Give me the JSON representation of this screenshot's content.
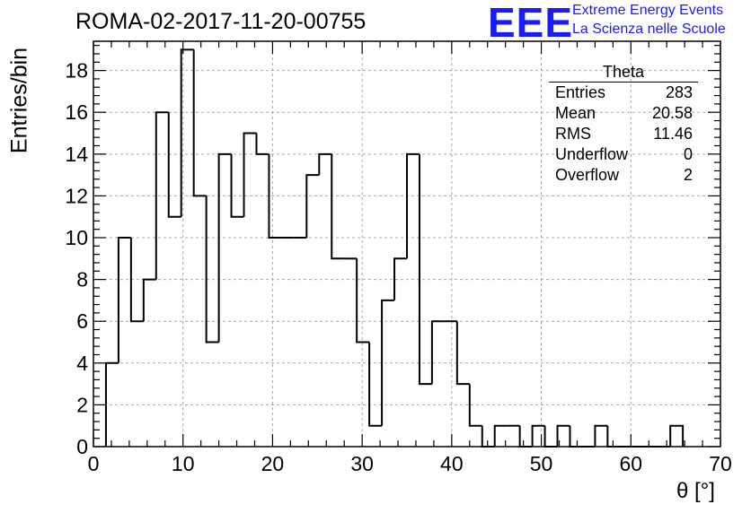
{
  "chart_data": {
    "type": "bar",
    "title": "ROMA-02-2017-11-20-00755",
    "xlabel": "θ [°]",
    "ylabel": "Entries/bin",
    "xlim": [
      0,
      70
    ],
    "ylim": [
      0,
      19.4
    ],
    "xticks": [
      "0",
      "10",
      "20",
      "30",
      "40",
      "50",
      "60",
      "70"
    ],
    "yticks": [
      "0",
      "2",
      "4",
      "6",
      "8",
      "10",
      "12",
      "14",
      "16",
      "18"
    ],
    "grid": true,
    "bin_edges": [
      1.4,
      2.8,
      4.2,
      5.6,
      7.0,
      8.4,
      9.8,
      11.2,
      12.6,
      14.0,
      15.4,
      16.8,
      18.2,
      19.6,
      21.0,
      22.4,
      23.8,
      25.2,
      26.6,
      28.0,
      29.4,
      30.8,
      32.2,
      33.6,
      35.0,
      36.4,
      37.8,
      39.2,
      40.6,
      42.0,
      43.4,
      44.8,
      46.2,
      47.6,
      49.0,
      50.4,
      51.8,
      53.2,
      54.6,
      56.0,
      57.4,
      58.8,
      60.2,
      61.6,
      63.0,
      64.4,
      65.8
    ],
    "values": [
      4,
      10,
      6,
      8,
      16,
      11,
      19,
      12,
      5,
      14,
      11,
      15,
      14,
      10,
      10,
      10,
      13,
      14,
      9,
      9,
      5,
      1,
      7,
      9,
      14,
      3,
      6,
      6,
      3,
      1,
      0,
      1,
      1,
      0,
      1,
      0,
      1,
      0,
      0,
      1,
      0,
      0,
      0,
      0,
      0,
      1
    ],
    "stats": {
      "title": "Theta",
      "entries": [
        {
          "label": "Entries",
          "value": "283"
        },
        {
          "label": "Mean",
          "value": "20.58"
        },
        {
          "label": "RMS",
          "value": "11.46"
        },
        {
          "label": "Underflow",
          "value": "0"
        },
        {
          "label": "Overflow",
          "value": "2"
        }
      ]
    }
  },
  "logo": {
    "text": "EEE",
    "line1": "Extreme Energy Events",
    "line2": "La Scienza nelle Scuole",
    "color": "#1a1aff"
  }
}
